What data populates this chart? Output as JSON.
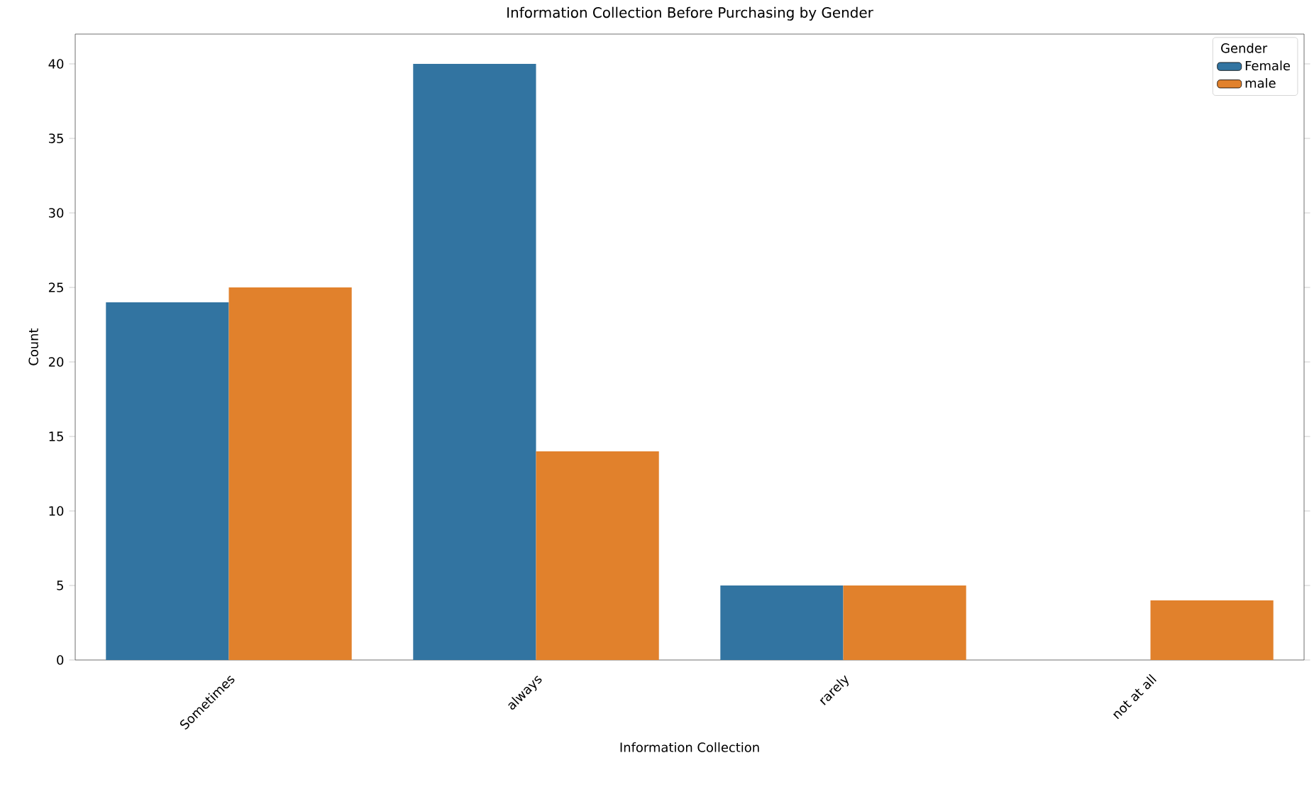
{
  "chart_data": {
    "type": "bar",
    "title": "Information Collection Before Purchasing by Gender",
    "xlabel": "Information Collection",
    "ylabel": "Count",
    "legend_title": "Gender",
    "categories": [
      "Sometimes",
      "always",
      "rarely",
      "not at all"
    ],
    "series": [
      {
        "name": "Female",
        "color": "#3274a1",
        "values": [
          24,
          40,
          5,
          null
        ]
      },
      {
        "name": "male",
        "color": "#e1812c",
        "values": [
          25,
          14,
          5,
          4
        ]
      }
    ],
    "ylim": [
      0,
      42
    ],
    "yticks": [
      0,
      5,
      10,
      15,
      20,
      25,
      30,
      35,
      40
    ],
    "legend": "top right",
    "grid": false
  }
}
